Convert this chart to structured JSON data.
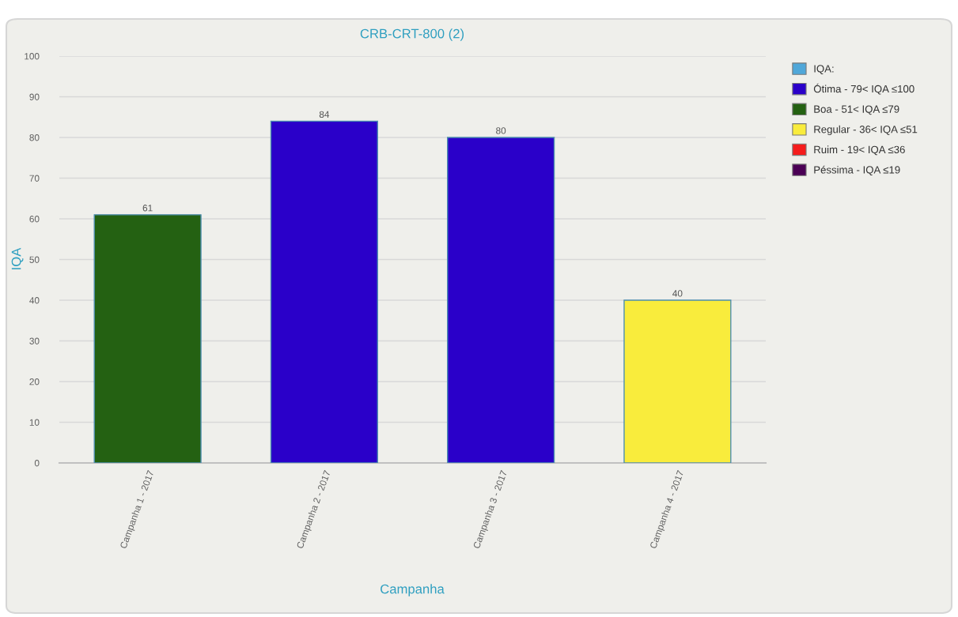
{
  "chart_data": {
    "type": "bar",
    "title": "CRB-CRT-800 (2)",
    "xlabel": "Campanha",
    "ylabel": "IQA",
    "categories": [
      "Campanha 1 - 2017",
      "Campanha 2 - 2017",
      "Campanha 3 - 2017",
      "Campanha 4 - 2017"
    ],
    "series": [
      {
        "name": "IQA:",
        "color": "#4fa7d9",
        "values": [
          null,
          null,
          null,
          null
        ]
      },
      {
        "name": "Ótima - 79< IQA ≤100",
        "color": "#2a00c9",
        "values": [
          null,
          84,
          80,
          null
        ]
      },
      {
        "name": "Boa - 51< IQA ≤79",
        "color": "#246112",
        "values": [
          61,
          null,
          null,
          null
        ]
      },
      {
        "name": "Regular - 36< IQA ≤51",
        "color": "#f9ec3c",
        "values": [
          null,
          null,
          null,
          40
        ]
      },
      {
        "name": "Ruim - 19< IQA ≤36",
        "color": "#f51c1c",
        "values": [
          null,
          null,
          null,
          null
        ]
      },
      {
        "name": "Péssima - IQA ≤19",
        "color": "#4b0055",
        "values": [
          null,
          null,
          null,
          null
        ]
      }
    ],
    "stacked": true,
    "data_labels": true,
    "ylim": [
      0,
      100
    ],
    "yticks": [
      0,
      10,
      20,
      30,
      40,
      50,
      60,
      70,
      80,
      90,
      100
    ],
    "grid": "y",
    "legend": "right"
  }
}
